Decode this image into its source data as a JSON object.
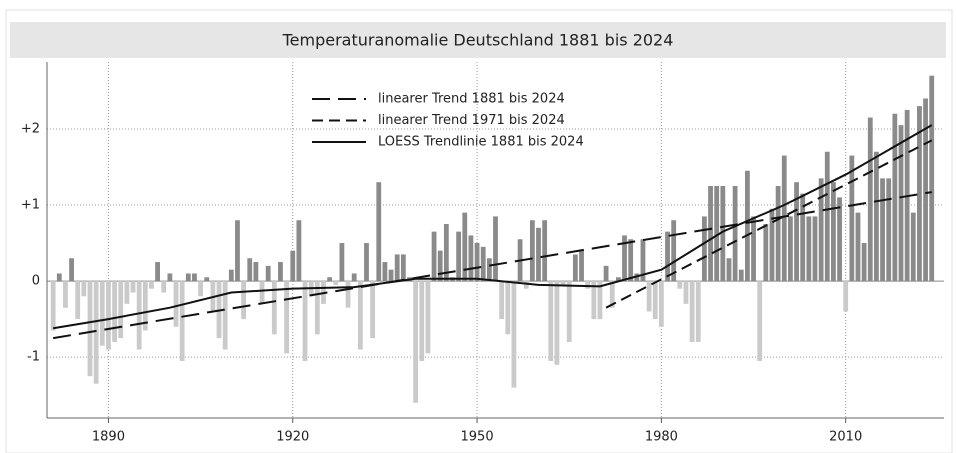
{
  "chart_data": {
    "type": "bar",
    "title": "Temperaturanomalie Deutschland 1881 bis 2024",
    "x": [
      1881,
      1882,
      1883,
      1884,
      1885,
      1886,
      1887,
      1888,
      1889,
      1890,
      1891,
      1892,
      1893,
      1894,
      1895,
      1896,
      1897,
      1898,
      1899,
      1900,
      1901,
      1902,
      1903,
      1904,
      1905,
      1906,
      1907,
      1908,
      1909,
      1910,
      1911,
      1912,
      1913,
      1914,
      1915,
      1916,
      1917,
      1918,
      1919,
      1920,
      1921,
      1922,
      1923,
      1924,
      1925,
      1926,
      1927,
      1928,
      1929,
      1930,
      1931,
      1932,
      1933,
      1934,
      1935,
      1936,
      1937,
      1938,
      1939,
      1940,
      1941,
      1942,
      1943,
      1944,
      1945,
      1946,
      1947,
      1948,
      1949,
      1950,
      1951,
      1952,
      1953,
      1954,
      1955,
      1956,
      1957,
      1958,
      1959,
      1960,
      1961,
      1962,
      1963,
      1964,
      1965,
      1966,
      1967,
      1968,
      1969,
      1970,
      1971,
      1972,
      1973,
      1974,
      1975,
      1976,
      1977,
      1978,
      1979,
      1980,
      1981,
      1982,
      1983,
      1984,
      1985,
      1986,
      1987,
      1988,
      1989,
      1990,
      1991,
      1992,
      1993,
      1994,
      1995,
      1996,
      1997,
      1998,
      1999,
      2000,
      2001,
      2002,
      2003,
      2004,
      2005,
      2006,
      2007,
      2008,
      2009,
      2010,
      2011,
      2012,
      2013,
      2014,
      2015,
      2016,
      2017,
      2018,
      2019,
      2020,
      2021,
      2022,
      2023,
      2024
    ],
    "values": [
      -0.65,
      0.1,
      -0.35,
      0.3,
      -0.5,
      -0.2,
      -1.25,
      -1.35,
      -0.85,
      -0.9,
      -0.8,
      -0.75,
      -0.3,
      -0.15,
      -0.9,
      -0.65,
      -0.1,
      0.25,
      -0.15,
      0.1,
      -0.6,
      -1.05,
      0.1,
      0.1,
      -0.2,
      0.05,
      -0.4,
      -0.75,
      -0.9,
      0.15,
      0.8,
      -0.5,
      0.3,
      0.25,
      -0.3,
      0.2,
      -0.7,
      0.25,
      -0.95,
      0.4,
      0.8,
      -1.05,
      -0.2,
      -0.7,
      -0.3,
      0.05,
      -0.05,
      0.5,
      -0.35,
      0.1,
      -0.9,
      0.5,
      -0.75,
      1.3,
      0.25,
      0.15,
      0.35,
      0.35,
      0.05,
      -1.6,
      -1.05,
      -0.95,
      0.65,
      0.4,
      0.75,
      0.05,
      0.65,
      0.9,
      0.6,
      0.5,
      0.45,
      0.3,
      0.85,
      -0.5,
      -0.7,
      -1.4,
      0.55,
      -0.1,
      0.8,
      0.7,
      0.8,
      -1.05,
      -1.1,
      -0.05,
      -0.8,
      0.35,
      0.4,
      -0.1,
      -0.5,
      -0.5,
      0.2,
      -0.35,
      0.05,
      0.6,
      0.55,
      0.1,
      0.55,
      -0.4,
      -0.5,
      -0.6,
      0.65,
      0.8,
      -0.1,
      -0.3,
      -0.8,
      -0.8,
      0.85,
      1.25,
      1.25,
      1.25,
      0.3,
      1.25,
      0.15,
      1.45,
      0.85,
      -1.05,
      0.75,
      0.95,
      1.25,
      1.65,
      0.85,
      1.3,
      1.15,
      0.85,
      0.85,
      1.35,
      1.7,
      1.3,
      1.1,
      -0.4,
      1.65,
      0.9,
      0.5,
      2.15,
      1.7,
      1.35,
      1.35,
      2.2,
      2.05,
      2.25,
      0.9,
      2.3,
      2.4,
      2.7
    ],
    "color_positive": "#8a8a8a",
    "color_negative": "#cacaca",
    "lines": [
      {
        "name": "linearer Trend 1881 bis 2024",
        "color": "#111111",
        "dash": "18 8",
        "x": [
          1881,
          2024
        ],
        "values": [
          -0.75,
          1.17
        ]
      },
      {
        "name": "linearer Trend 1971 bis 2024",
        "color": "#111111",
        "dash": "11 6",
        "x": [
          1971,
          2024
        ],
        "values": [
          -0.35,
          1.85
        ]
      },
      {
        "name": "LOESS Trendlinie 1881 bis 2024",
        "color": "#111111",
        "dash": "none",
        "x": [
          1881,
          1890,
          1900,
          1910,
          1920,
          1930,
          1940,
          1950,
          1960,
          1970,
          1980,
          1990,
          2000,
          2010,
          2024
        ],
        "values": [
          -0.62,
          -0.5,
          -0.35,
          -0.15,
          -0.1,
          -0.08,
          0.03,
          0.03,
          -0.05,
          -0.07,
          0.15,
          0.65,
          1.0,
          1.4,
          2.05
        ]
      }
    ],
    "xlim": [
      1880,
      2026
    ],
    "ylim": [
      -1.8,
      2.88
    ],
    "xticks": [
      1890,
      1920,
      1950,
      1980,
      2010
    ],
    "yticks": [
      -1,
      {
        "value": 0,
        "label": "0"
      },
      {
        "value": 1,
        "label": "+1"
      },
      {
        "value": 2,
        "label": "+2"
      }
    ],
    "grid": true
  }
}
